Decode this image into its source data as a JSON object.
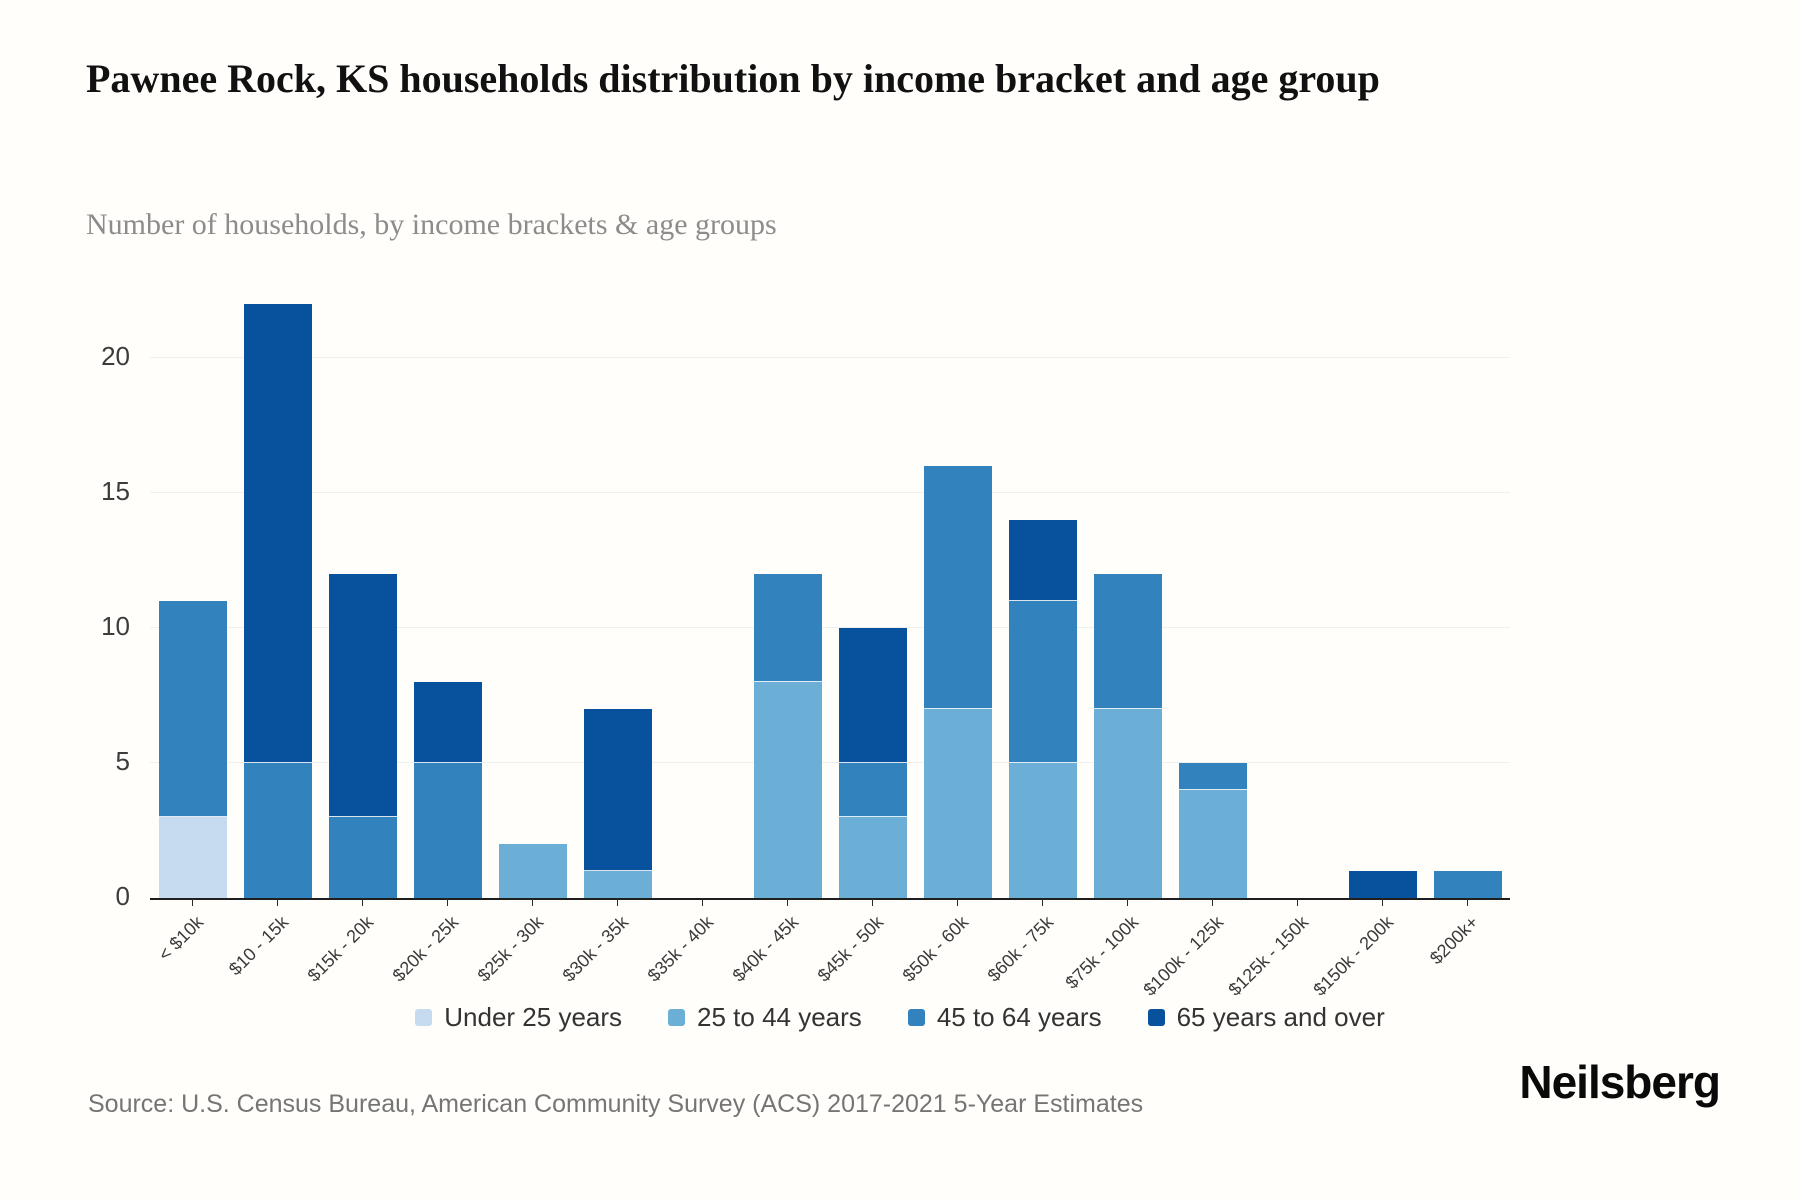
{
  "header": {
    "title": "Pawnee Rock, KS households distribution by income bracket and age group",
    "subtitle": "Number of households, by income brackets & age groups"
  },
  "footer": {
    "source": "Source: U.S. Census Bureau, American Community Survey (ACS) 2017-2021 5-Year Estimates",
    "brand": "Neilsberg"
  },
  "chart_data": {
    "type": "bar",
    "stacked": true,
    "title": "Pawnee Rock, KS households distribution by income bracket and age group",
    "subtitle": "Number of households, by income brackets & age groups",
    "xlabel": "",
    "ylabel": "Number of households",
    "categories": [
      "< $10k",
      "$10 - 15k",
      "$15k - 20k",
      "$20k - 25k",
      "$25k - 30k",
      "$30k - 35k",
      "$35k - 40k",
      "$40k - 45k",
      "$45k - 50k",
      "$50k - 60k",
      "$60k - 75k",
      "$75k - 100k",
      "$100k - 125k",
      "$125k - 150k",
      "$150k - 200k",
      "$200k+"
    ],
    "series": [
      {
        "name": "Under 25 years",
        "color": "#c6dbef",
        "values": [
          3,
          0,
          0,
          0,
          0,
          0,
          0,
          0,
          0,
          0,
          0,
          0,
          0,
          0,
          0,
          0
        ]
      },
      {
        "name": "25 to 44 years",
        "color": "#6baed6",
        "values": [
          0,
          0,
          0,
          0,
          2,
          1,
          0,
          8,
          3,
          7,
          5,
          7,
          4,
          0,
          0,
          0
        ]
      },
      {
        "name": "45 to 64 years",
        "color": "#3182bd",
        "values": [
          8,
          5,
          3,
          5,
          0,
          0,
          0,
          4,
          2,
          9,
          6,
          5,
          1,
          0,
          0,
          1
        ]
      },
      {
        "name": "65 years and over",
        "color": "#08519c",
        "values": [
          0,
          17,
          9,
          3,
          0,
          6,
          0,
          0,
          5,
          0,
          3,
          0,
          0,
          0,
          1,
          0
        ]
      }
    ],
    "totals": [
      11,
      22,
      12,
      8,
      2,
      7,
      0,
      12,
      10,
      16,
      14,
      12,
      5,
      0,
      1,
      1
    ],
    "yticks": [
      0,
      5,
      10,
      15,
      20
    ],
    "ylim": [
      0,
      22
    ],
    "grid": true,
    "legend_position": "bottom"
  }
}
